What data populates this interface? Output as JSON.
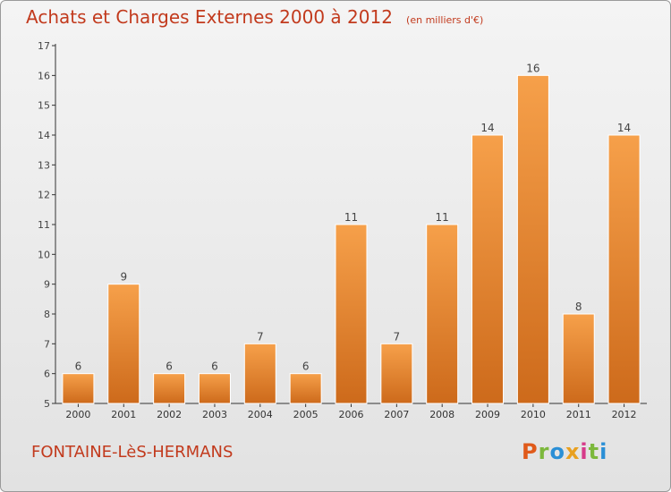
{
  "header": {
    "title": "Achats et Charges Externes 2000 à 2012",
    "unit": "(en milliers d'€)"
  },
  "footer": {
    "city": "FONTAINE-LèS-HERMANS",
    "logo_letters": [
      "P",
      "r",
      "o",
      "x",
      "i",
      "t",
      "i"
    ],
    "logo_colors": [
      "#e05a1a",
      "#7cb83c",
      "#2a8fd6",
      "#e8a020",
      "#d63a8a",
      "#7cb83c",
      "#2a8fd6"
    ]
  },
  "colors": {
    "title": "#c23a1d",
    "bar_light": "#f6a04a",
    "bar_dark": "#cd6a1b",
    "axis": "#333333"
  },
  "chart_data": {
    "type": "bar",
    "categories": [
      "2000",
      "2001",
      "2002",
      "2003",
      "2004",
      "2005",
      "2006",
      "2007",
      "2008",
      "2009",
      "2010",
      "2011",
      "2012"
    ],
    "values": [
      6,
      9,
      6,
      6,
      7,
      6,
      11,
      7,
      11,
      14,
      16,
      8,
      14
    ],
    "title": "Achats et Charges Externes 2000 à 2012",
    "xlabel": "",
    "ylabel": "",
    "ylim": [
      5,
      17
    ],
    "yticks": [
      5,
      6,
      7,
      8,
      9,
      10,
      11,
      12,
      13,
      14,
      15,
      16,
      17
    ],
    "grid": false,
    "data_labels": true
  }
}
